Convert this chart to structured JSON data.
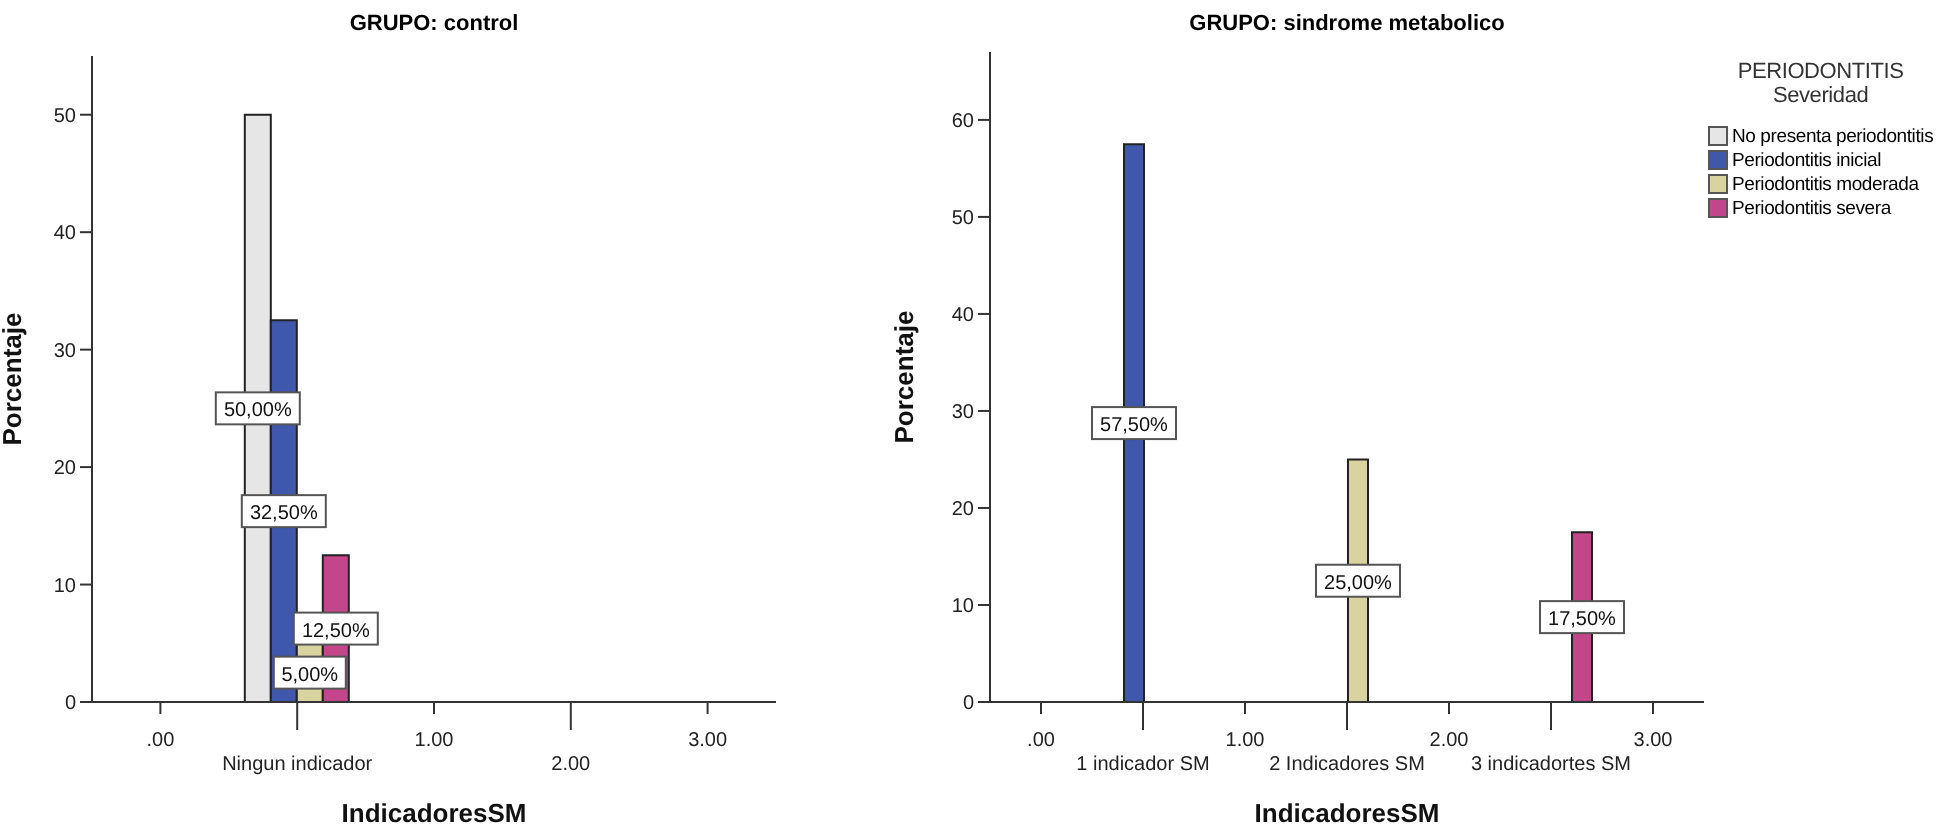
{
  "chart_data": [
    {
      "type": "bar",
      "title": "GRUPO: control",
      "xlabel": "IndicadoresSM",
      "ylabel": "Porcentaje",
      "categories": [
        ".00",
        "Ningun indicador",
        "1.00",
        "2.00",
        "3.00"
      ],
      "series": [
        {
          "color": "#e6e6e6",
          "values": [
            null,
            50,
            null,
            null,
            null
          ],
          "value_labels": [
            null,
            "50,00%",
            null,
            null,
            null
          ]
        },
        {
          "color": "#3f57ad",
          "values": [
            null,
            32.5,
            null,
            null,
            null
          ],
          "value_labels": [
            null,
            "32,50%",
            null,
            null,
            null
          ]
        },
        {
          "color": "#d9d3a0",
          "values": [
            null,
            5,
            null,
            null,
            null
          ],
          "value_labels": [
            null,
            "5,00%",
            null,
            null,
            null
          ]
        },
        {
          "color": "#c4468a",
          "values": [
            null,
            12.5,
            null,
            null,
            null
          ],
          "value_labels": [
            null,
            "12,50%",
            null,
            null,
            null
          ]
        }
      ],
      "ylim": [
        0,
        55
      ],
      "yticks": [
        0,
        10,
        20,
        30,
        40,
        50
      ],
      "grid": false,
      "legend": false
    },
    {
      "type": "bar",
      "title": "GRUPO: sindrome metabolico",
      "xlabel": "IndicadoresSM",
      "ylabel": "Porcentaje",
      "legend_title": "PERIODONTITIS\nSeveridad",
      "categories": [
        ".00",
        "1 indicador SM",
        "1.00",
        "2 Indicadores SM",
        "2.00",
        "3 indicadortes SM",
        "3.00"
      ],
      "series": [
        {
          "name": "No presenta periodontitis",
          "color": "#e6e6e6",
          "values": [
            null,
            null,
            null,
            null,
            null,
            null,
            null
          ]
        },
        {
          "name": "Periodontitis inicial",
          "color": "#3f57ad",
          "values": [
            null,
            57.5,
            null,
            null,
            null,
            null,
            null
          ],
          "value_labels": [
            null,
            "57,50%",
            null,
            null,
            null,
            null,
            null
          ]
        },
        {
          "name": "Periodontitis moderada",
          "color": "#d9d3a0",
          "values": [
            null,
            null,
            null,
            25,
            null,
            null,
            null
          ],
          "value_labels": [
            null,
            null,
            null,
            "25,00%",
            null,
            null,
            null
          ]
        },
        {
          "name": "Periodontitis severa",
          "color": "#c4468a",
          "values": [
            null,
            null,
            null,
            null,
            null,
            17.5,
            null
          ],
          "value_labels": [
            null,
            null,
            null,
            null,
            null,
            "17,50%",
            null
          ]
        }
      ],
      "ylim": [
        0,
        67
      ],
      "yticks": [
        0,
        10,
        20,
        30,
        40,
        50,
        60
      ],
      "grid": false,
      "legend": "right"
    }
  ]
}
